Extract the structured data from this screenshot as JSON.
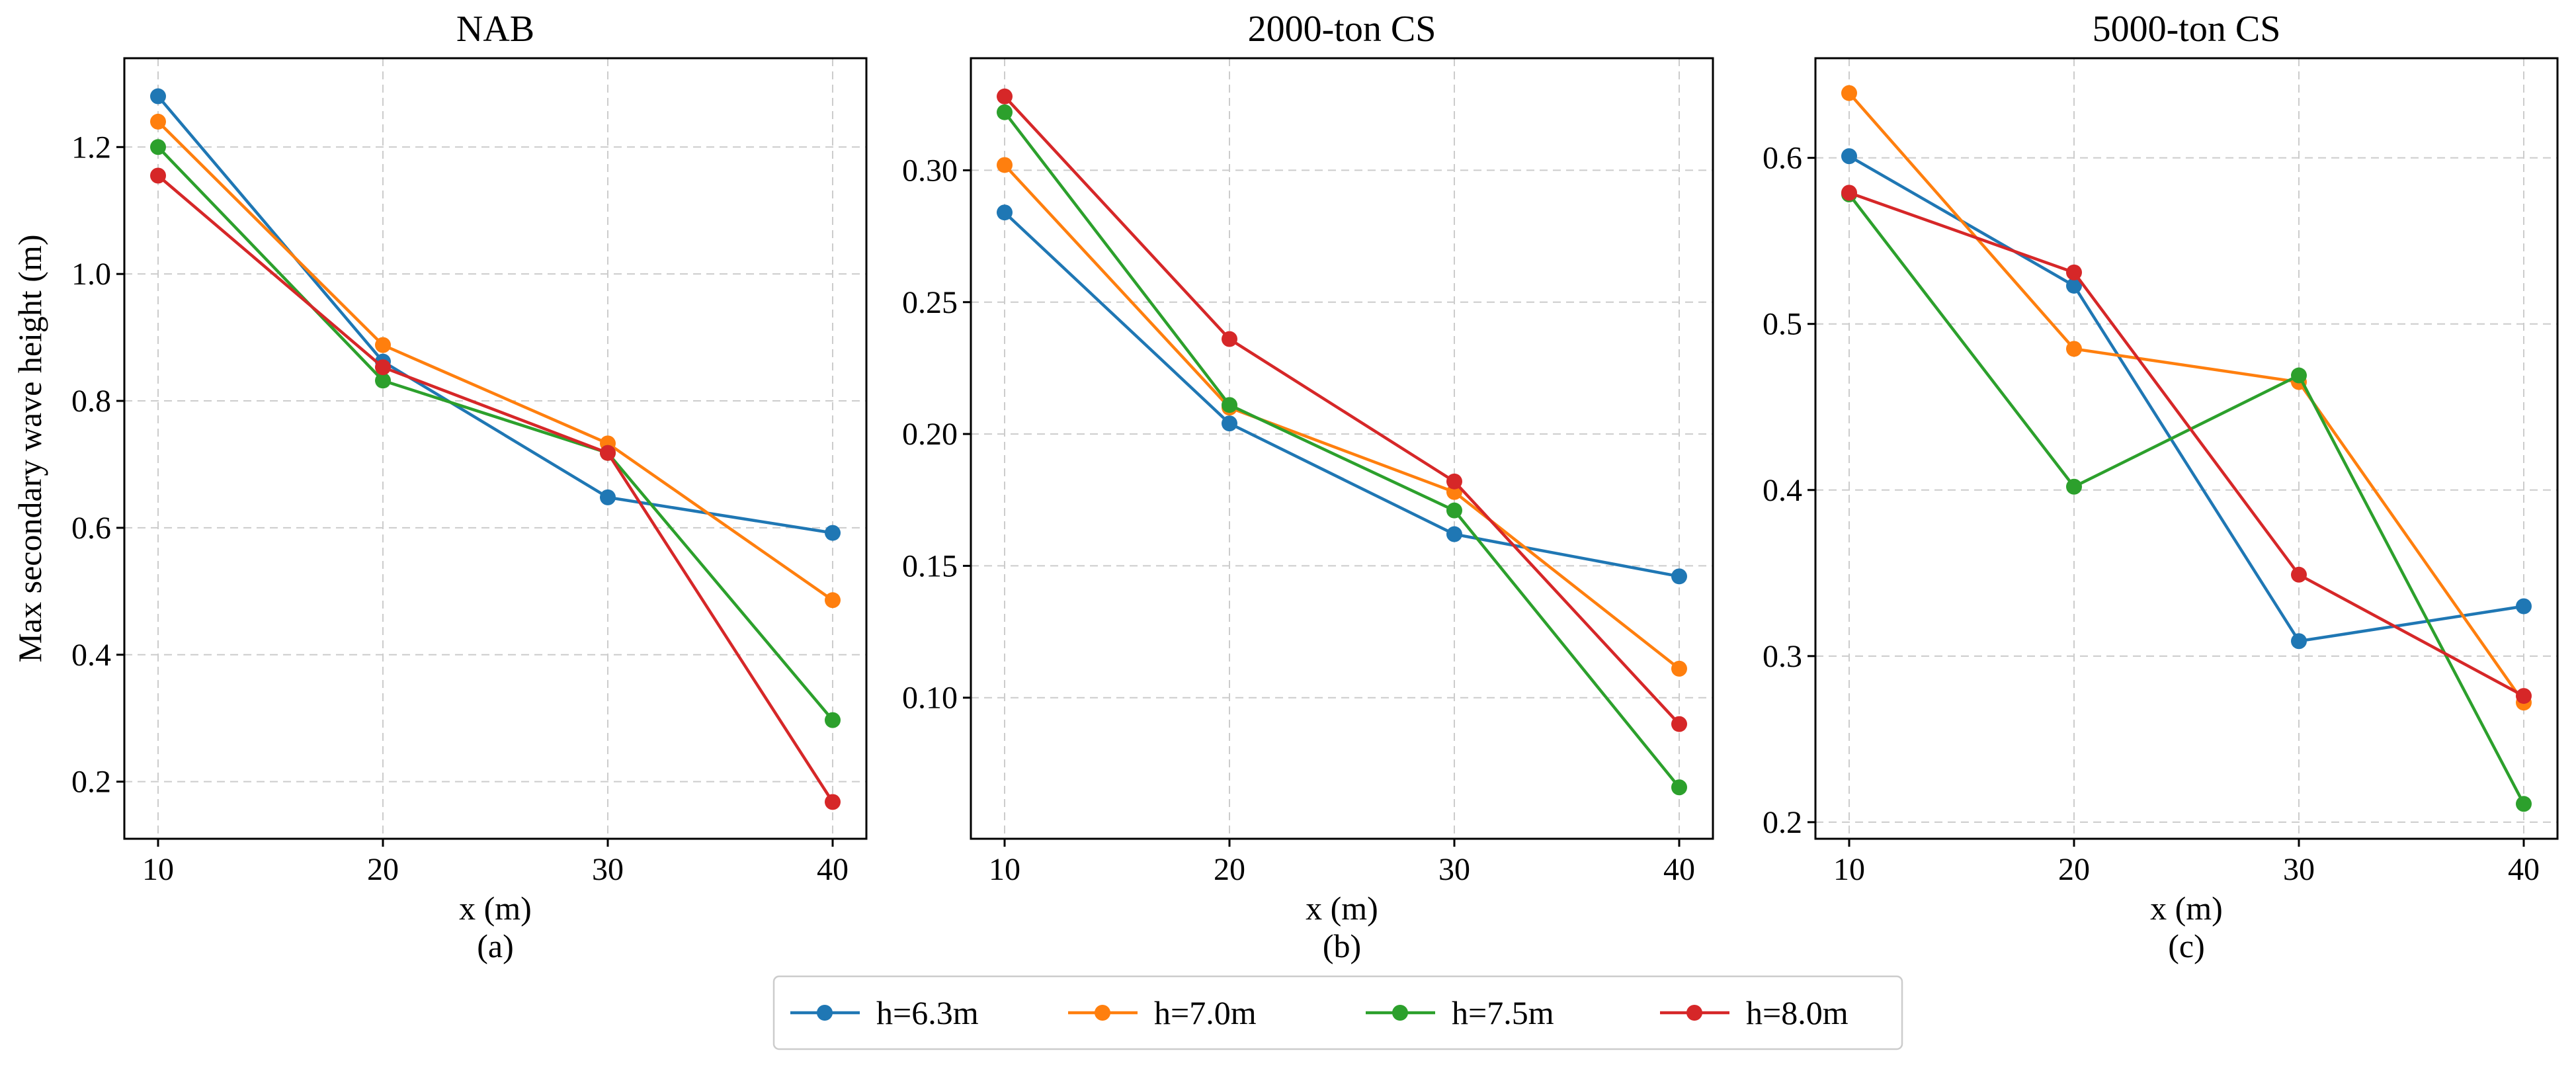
{
  "legend": [
    {
      "name": "h=6.3m",
      "color": "#1f77b4"
    },
    {
      "name": "h=7.0m",
      "color": "#ff7f0e"
    },
    {
      "name": "h=7.5m",
      "color": "#2ca02c"
    },
    {
      "name": "h=8.0m",
      "color": "#d62728"
    }
  ],
  "chart_data": [
    {
      "type": "line",
      "title": "NAB",
      "xlabel": "x (m)",
      "sublabel": "(a)",
      "ylabel": "Max secondary wave height (m)",
      "x": [
        10,
        20,
        30,
        40
      ],
      "xlim": [
        8.5,
        41.5
      ],
      "ylim": [
        0.11,
        1.34
      ],
      "xticks": [
        10,
        20,
        30,
        40
      ],
      "xtick_labels": [
        "10",
        "20",
        "30",
        "40"
      ],
      "yticks": [
        0.2,
        0.4,
        0.6,
        0.8,
        1.0,
        1.2
      ],
      "ytick_labels": [
        "0.2",
        "0.4",
        "0.6",
        "0.8",
        "1.0",
        "1.2"
      ],
      "grid": true,
      "series": [
        {
          "name": "h=6.3m",
          "values": [
            1.28,
            0.862,
            0.648,
            0.592
          ]
        },
        {
          "name": "h=7.0m",
          "values": [
            1.24,
            0.888,
            0.733,
            0.486
          ]
        },
        {
          "name": "h=7.5m",
          "values": [
            1.2,
            0.832,
            0.718,
            0.297
          ]
        },
        {
          "name": "h=8.0m",
          "values": [
            1.155,
            0.853,
            0.718,
            0.168
          ]
        }
      ]
    },
    {
      "type": "line",
      "title": "2000-ton CS",
      "xlabel": "x (m)",
      "sublabel": "(b)",
      "ylabel": "",
      "x": [
        10,
        20,
        30,
        40
      ],
      "xlim": [
        8.5,
        41.5
      ],
      "ylim": [
        0.0465,
        0.3425
      ],
      "xticks": [
        10,
        20,
        30,
        40
      ],
      "xtick_labels": [
        "10",
        "20",
        "30",
        "40"
      ],
      "yticks": [
        0.1,
        0.15,
        0.2,
        0.25,
        0.3
      ],
      "ytick_labels": [
        "0.10",
        "0.15",
        "0.20",
        "0.25",
        "0.30"
      ],
      "grid": true,
      "series": [
        {
          "name": "h=6.3m",
          "values": [
            0.284,
            0.204,
            0.162,
            0.146
          ]
        },
        {
          "name": "h=7.0m",
          "values": [
            0.302,
            0.21,
            0.178,
            0.111
          ]
        },
        {
          "name": "h=7.5m",
          "values": [
            0.322,
            0.211,
            0.171,
            0.066
          ]
        },
        {
          "name": "h=8.0m",
          "values": [
            0.328,
            0.236,
            0.182,
            0.09
          ]
        }
      ]
    },
    {
      "type": "line",
      "title": "5000-ton CS",
      "xlabel": "x (m)",
      "sublabel": "(c)",
      "ylabel": "",
      "x": [
        10,
        20,
        30,
        40
      ],
      "xlim": [
        8.5,
        41.5
      ],
      "ylim": [
        0.19,
        0.66
      ],
      "xticks": [
        10,
        20,
        30,
        40
      ],
      "xtick_labels": [
        "10",
        "20",
        "30",
        "40"
      ],
      "yticks": [
        0.2,
        0.3,
        0.4,
        0.5,
        0.6
      ],
      "ytick_labels": [
        "0.2",
        "0.3",
        "0.4",
        "0.5",
        "0.6"
      ],
      "grid": true,
      "series": [
        {
          "name": "h=6.3m",
          "values": [
            0.601,
            0.523,
            0.309,
            0.33
          ]
        },
        {
          "name": "h=7.0m",
          "values": [
            0.639,
            0.485,
            0.465,
            0.272
          ]
        },
        {
          "name": "h=7.5m",
          "values": [
            0.578,
            0.402,
            0.469,
            0.211
          ]
        },
        {
          "name": "h=8.0m",
          "values": [
            0.579,
            0.531,
            0.349,
            0.276
          ]
        }
      ]
    }
  ]
}
